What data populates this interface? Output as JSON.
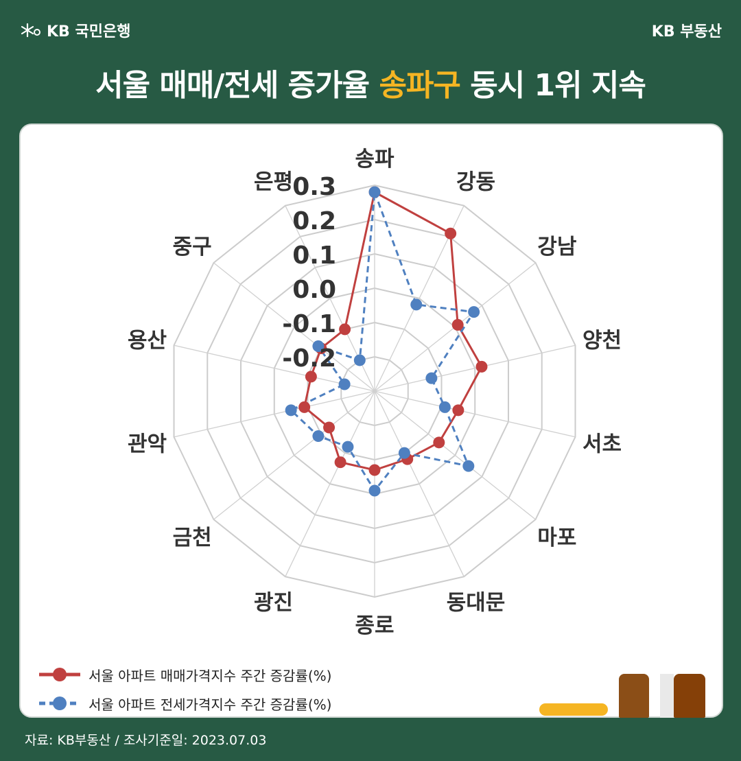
{
  "header": {
    "logo_text": "KB 국민은행",
    "brand": "KB 부동산"
  },
  "title": {
    "part1": "서울 매매/전세 증가율 ",
    "highlight": "송파구",
    "part2": " 동시 1위 지속"
  },
  "source": "자료: KB부동산 / 조사기준일: 2023.07.03",
  "colors": {
    "background": "#275a44",
    "highlight": "#f5b523",
    "series_sale": "#c0403f",
    "series_jeonse": "#4f80c0"
  },
  "chart_data": {
    "type": "radar",
    "categories": [
      "송파",
      "강동",
      "강남",
      "양천",
      "서초",
      "마포",
      "동대문",
      "종로",
      "광진",
      "금천",
      "관악",
      "용산",
      "중구",
      "은평"
    ],
    "r_ticks": [
      "0.3",
      "0.2",
      "0.1",
      "0.0",
      "-0.1",
      "-0.2"
    ],
    "r_min": -0.3,
    "r_max": 0.3,
    "series": [
      {
        "name": "서울 아파트 매매가격지수 주간 증감률(%)",
        "style": "solid",
        "values": [
          0.28,
          0.21,
          0.01,
          0.02,
          -0.05,
          -0.06,
          -0.08,
          -0.07,
          -0.07,
          -0.13,
          -0.09,
          -0.11,
          -0.1,
          -0.1
        ]
      },
      {
        "name": "서울 아파트 전세가격지수 주간 증감률(%)",
        "style": "dashed",
        "values": [
          0.28,
          -0.02,
          0.07,
          -0.13,
          -0.09,
          0.05,
          -0.1,
          -0.01,
          -0.12,
          -0.09,
          -0.05,
          -0.21,
          -0.09,
          -0.2
        ]
      }
    ]
  }
}
